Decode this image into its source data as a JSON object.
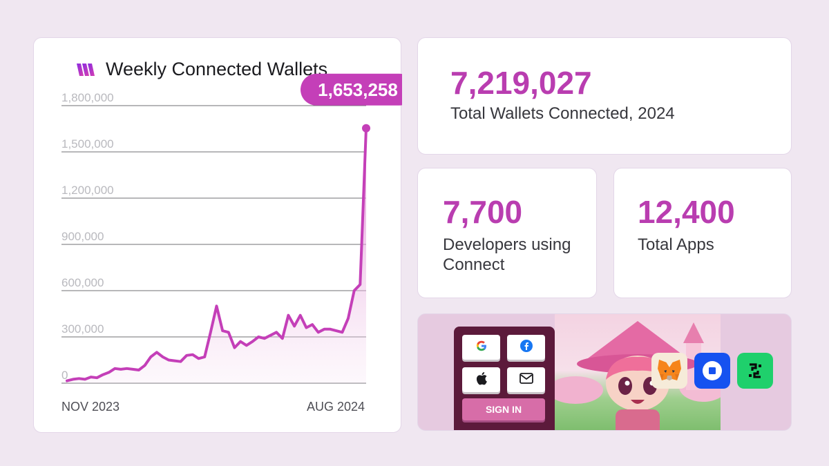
{
  "chart_data": {
    "type": "area",
    "title": "Weekly Connected Wallets",
    "y_ticks": [
      "1,800,000",
      "1,500,000",
      "1,200,000",
      "900,000",
      "600,000",
      "300,000",
      "0"
    ],
    "y_tick_values": [
      1800000,
      1500000,
      1200000,
      900000,
      600000,
      300000,
      0
    ],
    "ylim": [
      0,
      1800000
    ],
    "x_start_label": "NOV 2023",
    "x_end_label": "AUG 2024",
    "grid": true,
    "values": [
      15000,
      25000,
      30000,
      25000,
      40000,
      35000,
      55000,
      70000,
      95000,
      90000,
      95000,
      90000,
      85000,
      115000,
      170000,
      200000,
      170000,
      150000,
      145000,
      140000,
      180000,
      185000,
      160000,
      170000,
      330000,
      500000,
      340000,
      330000,
      230000,
      270000,
      245000,
      270000,
      300000,
      290000,
      310000,
      330000,
      290000,
      440000,
      370000,
      440000,
      360000,
      380000,
      330000,
      350000,
      350000,
      340000,
      330000,
      420000,
      600000,
      640000,
      1653258
    ],
    "peak_value": 1653258,
    "peak_label": "1,653,258",
    "line_color": "#c43fb8"
  },
  "stats": {
    "total_value": "7,219,027",
    "total_label": "Total Wallets Connected, 2024",
    "devs_value": "7,700",
    "devs_label": "Developers using Connect",
    "apps_value": "12,400",
    "apps_label": "Total Apps"
  },
  "banner": {
    "signin_label": "SIGN IN",
    "login_options": [
      "google-icon",
      "facebook-icon",
      "apple-icon",
      "email-icon"
    ],
    "wallets": [
      "metamask-icon",
      "coinbase-wallet-icon",
      "wallet-app-icon"
    ]
  },
  "colors": {
    "accent": "#b93db0",
    "background": "#f0e7f1",
    "signin_panel": "#5c1a3b"
  }
}
